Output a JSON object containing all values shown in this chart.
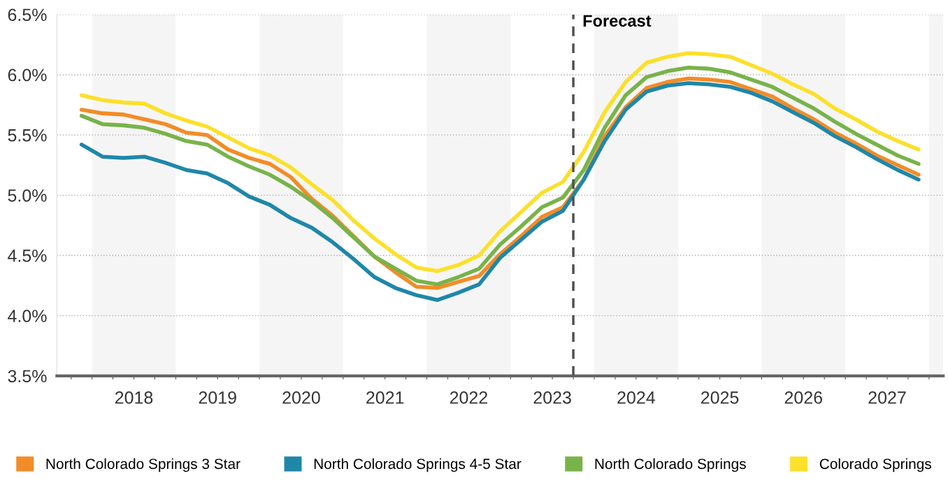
{
  "chart_data": {
    "type": "line",
    "x": [
      2017.875,
      2018.125,
      2018.375,
      2018.625,
      2018.875,
      2019.125,
      2019.375,
      2019.625,
      2019.875,
      2020.125,
      2020.375,
      2020.625,
      2020.875,
      2021.125,
      2021.375,
      2021.625,
      2021.875,
      2022.125,
      2022.375,
      2022.625,
      2022.875,
      2023.125,
      2023.375,
      2023.625,
      2023.875,
      2024.125,
      2024.375,
      2024.625,
      2024.875,
      2025.125,
      2025.375,
      2025.625,
      2025.875,
      2026.125,
      2026.375,
      2026.625,
      2026.875,
      2027.125,
      2027.375,
      2027.625,
      2027.875
    ],
    "series": [
      {
        "name": "North Colorado Springs 3 Star",
        "color": "#f28c28",
        "values": [
          5.71,
          5.68,
          5.67,
          5.63,
          5.59,
          5.52,
          5.5,
          5.38,
          5.31,
          5.26,
          5.15,
          4.97,
          4.83,
          4.66,
          4.49,
          4.36,
          4.24,
          4.23,
          4.28,
          4.33,
          4.51,
          4.66,
          4.82,
          4.9,
          5.13,
          5.49,
          5.73,
          5.89,
          5.94,
          5.97,
          5.96,
          5.94,
          5.88,
          5.82,
          5.72,
          5.63,
          5.52,
          5.43,
          5.33,
          5.25,
          5.17
        ]
      },
      {
        "name": "North Colorado Springs 4-5 Star",
        "color": "#1f87a8",
        "values": [
          5.42,
          5.32,
          5.31,
          5.32,
          5.27,
          5.21,
          5.18,
          5.1,
          4.99,
          4.92,
          4.81,
          4.73,
          4.61,
          4.47,
          4.32,
          4.23,
          4.17,
          4.13,
          4.19,
          4.26,
          4.48,
          4.63,
          4.78,
          4.87,
          5.13,
          5.45,
          5.71,
          5.86,
          5.91,
          5.93,
          5.92,
          5.9,
          5.85,
          5.78,
          5.69,
          5.6,
          5.49,
          5.4,
          5.3,
          5.21,
          5.13
        ]
      },
      {
        "name": "North Colorado Springs",
        "color": "#78b34a",
        "values": [
          5.66,
          5.59,
          5.58,
          5.56,
          5.51,
          5.45,
          5.42,
          5.32,
          5.24,
          5.17,
          5.07,
          4.95,
          4.81,
          4.65,
          4.49,
          4.39,
          4.29,
          4.26,
          4.32,
          4.39,
          4.59,
          4.74,
          4.9,
          4.98,
          5.21,
          5.56,
          5.83,
          5.98,
          6.03,
          6.06,
          6.05,
          6.02,
          5.96,
          5.9,
          5.81,
          5.72,
          5.61,
          5.51,
          5.42,
          5.33,
          5.26
        ]
      },
      {
        "name": "Colorado Springs",
        "color": "#fce02a",
        "values": [
          5.83,
          5.79,
          5.77,
          5.76,
          5.68,
          5.62,
          5.57,
          5.48,
          5.39,
          5.33,
          5.23,
          5.09,
          4.96,
          4.79,
          4.64,
          4.51,
          4.4,
          4.37,
          4.42,
          4.5,
          4.7,
          4.86,
          5.02,
          5.11,
          5.36,
          5.69,
          5.94,
          6.1,
          6.15,
          6.18,
          6.17,
          6.15,
          6.08,
          6.01,
          5.92,
          5.84,
          5.72,
          5.63,
          5.53,
          5.45,
          5.38
        ]
      }
    ],
    "xlim": [
      2017.58,
      2028.17
    ],
    "xticks": [
      {
        "value": 2017.75,
        "label": null
      },
      {
        "value": 2018,
        "label": null
      },
      {
        "value": 2018.25,
        "label": null
      },
      {
        "value": 2018.5,
        "label": "2018"
      },
      {
        "value": 2018.75,
        "label": null
      },
      {
        "value": 2019,
        "label": null
      },
      {
        "value": 2019.25,
        "label": null
      },
      {
        "value": 2019.5,
        "label": "2019"
      },
      {
        "value": 2019.75,
        "label": null
      },
      {
        "value": 2020,
        "label": null
      },
      {
        "value": 2020.25,
        "label": null
      },
      {
        "value": 2020.5,
        "label": "2020"
      },
      {
        "value": 2020.75,
        "label": null
      },
      {
        "value": 2021,
        "label": null
      },
      {
        "value": 2021.25,
        "label": null
      },
      {
        "value": 2021.5,
        "label": "2021"
      },
      {
        "value": 2021.75,
        "label": null
      },
      {
        "value": 2022,
        "label": null
      },
      {
        "value": 2022.25,
        "label": null
      },
      {
        "value": 2022.5,
        "label": "2022"
      },
      {
        "value": 2022.75,
        "label": null
      },
      {
        "value": 2023,
        "label": null
      },
      {
        "value": 2023.25,
        "label": null
      },
      {
        "value": 2023.5,
        "label": "2023"
      },
      {
        "value": 2023.75,
        "label": null
      },
      {
        "value": 2024,
        "label": null
      },
      {
        "value": 2024.25,
        "label": null
      },
      {
        "value": 2024.5,
        "label": "2024"
      },
      {
        "value": 2024.75,
        "label": null
      },
      {
        "value": 2025,
        "label": null
      },
      {
        "value": 2025.25,
        "label": null
      },
      {
        "value": 2025.5,
        "label": "2025"
      },
      {
        "value": 2025.75,
        "label": null
      },
      {
        "value": 2026,
        "label": null
      },
      {
        "value": 2026.25,
        "label": null
      },
      {
        "value": 2026.5,
        "label": "2026"
      },
      {
        "value": 2026.75,
        "label": null
      },
      {
        "value": 2027,
        "label": null
      },
      {
        "value": 2027.25,
        "label": null
      },
      {
        "value": 2027.5,
        "label": "2027"
      },
      {
        "value": 2027.75,
        "label": null
      },
      {
        "value": 2028,
        "label": null
      }
    ],
    "ylim": [
      3.5,
      6.5
    ],
    "yticks": [
      {
        "value": 3.5,
        "label": "3.5%"
      },
      {
        "value": 4.0,
        "label": "4.0%"
      },
      {
        "value": 4.5,
        "label": "4.5%"
      },
      {
        "value": 5.0,
        "label": "5.0%"
      },
      {
        "value": 5.5,
        "label": "5.5%"
      },
      {
        "value": 6.0,
        "label": "6.0%"
      },
      {
        "value": 6.5,
        "label": "6.5%"
      }
    ],
    "ref_lines": [
      {
        "axis": "x",
        "value": 2023.75,
        "label": "Forecast",
        "color": "#505050",
        "line_style": "dashed"
      }
    ],
    "bands": [
      {
        "axis": "x",
        "from": 2018,
        "to": 2019,
        "label": null,
        "color": "#f5f5f5"
      },
      {
        "axis": "x",
        "from": 2020,
        "to": 2021,
        "label": null,
        "color": "#f5f5f5"
      },
      {
        "axis": "x",
        "from": 2022,
        "to": 2023,
        "label": null,
        "color": "#f5f5f5"
      },
      {
        "axis": "x",
        "from": 2024,
        "to": 2025,
        "label": null,
        "color": "#f5f5f5"
      },
      {
        "axis": "x",
        "from": 2026,
        "to": 2027,
        "label": null,
        "color": "#f5f5f5"
      },
      {
        "axis": "x",
        "from": 2028,
        "to": 2028.17,
        "label": null,
        "color": "#f5f5f5"
      }
    ],
    "grid": "y",
    "legend": "bottom",
    "marker": "none",
    "line_style": "solid"
  }
}
